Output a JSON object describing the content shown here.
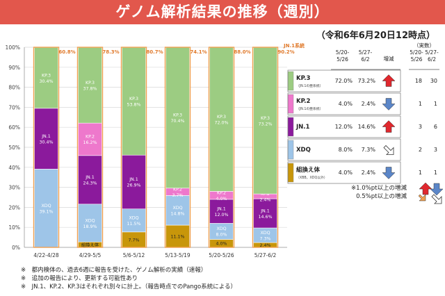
{
  "title": "ゲノム解析結果の推移（週別）",
  "as_of": "（令和6年6月20日12時点）",
  "chart_data": {
    "type": "bar",
    "stacked": true,
    "ylim": [
      0,
      100
    ],
    "y_ticks": [
      "0%",
      "10%",
      "20%",
      "30%",
      "40%",
      "50%",
      "60%",
      "70%",
      "80%",
      "90%",
      "100%"
    ],
    "categories": [
      "4/22-4/28",
      "4/29-5/5",
      "5/6-5/12",
      "5/13-5/19",
      "5/20-5/26",
      "5/27-6/2"
    ],
    "series": [
      {
        "name": "組換え体",
        "color": "#c8960a",
        "values": [
          0,
          2.7,
          7.7,
          11.1,
          4.0,
          2.4
        ],
        "labels": [
          "",
          "組換え体",
          "7.7%",
          "11.1%",
          "4.0%",
          "2.4%"
        ]
      },
      {
        "name": "XDQ",
        "color": "#9ec5e8",
        "values": [
          39.1,
          18.9,
          11.5,
          14.8,
          8.0,
          7.3
        ],
        "labels": [
          "XDQ\n39.1%",
          "XDQ\n18.9%",
          "XDQ\n11.5%",
          "XDQ\n14.8%",
          "XDQ\n8.0%",
          "XDQ\n7.3%"
        ]
      },
      {
        "name": "JN.1",
        "color": "#8b1a9c",
        "values": [
          30.4,
          24.3,
          26.9,
          0,
          12.0,
          14.6
        ],
        "labels": [
          "JN.1\n30.4%",
          "JN.1\n24.3%",
          "JN.1\n26.9%",
          "",
          "JN.1\n12.0%",
          "JN.1\n14.6%"
        ]
      },
      {
        "name": "KP.2",
        "color": "#ee78cc",
        "values": [
          0,
          16.2,
          0,
          3.7,
          4.0,
          2.4
        ],
        "labels": [
          "",
          "KP.2\n16.2%",
          "",
          "KP.2\n3.7%",
          "KP.2\n4.0%",
          "KP.2\n2.4%"
        ]
      },
      {
        "name": "KP.3",
        "color": "#9ccc82",
        "values": [
          30.4,
          37.8,
          53.8,
          70.4,
          72.0,
          73.2
        ],
        "labels": [
          "KP.3\n30.4%",
          "KP.3\n37.8%",
          "KP.3\n53.8%",
          "KP.3\n70.4%",
          "KP.3\n72.0%",
          "KP.3\n73.2%"
        ]
      }
    ],
    "jn1_lineage_label": "JN.1系統",
    "jn1_lineage_pct": [
      "60.8%",
      "78.3%",
      "80.7%",
      "74.1%",
      "88.0%",
      "90.2%"
    ],
    "jn1_lineage_values": [
      60.8,
      78.3,
      80.7,
      74.1,
      88.0,
      90.2
    ]
  },
  "table": {
    "header_pct": [
      "5/20-\n5/26",
      "5/27-\n6/2"
    ],
    "header_change": "増減",
    "header_counts_title": "（実数）",
    "header_counts": [
      "5/20-\n5/26",
      "5/27-\n6/2"
    ],
    "rows": [
      {
        "name": "KP.3",
        "sub": "（JN.1の亜系統）",
        "color": "#9ccc82",
        "p1": "72.0%",
        "p2": "73.2%",
        "change": "up-big",
        "c1": "18",
        "c2": "30"
      },
      {
        "name": "KP.2",
        "sub": "（JN.1の亜系統）",
        "color": "#ee78cc",
        "p1": "4.0%",
        "p2": "2.4%",
        "change": "down-big",
        "c1": "1",
        "c2": "1"
      },
      {
        "name": "JN.1",
        "sub": "",
        "color": "#8b1a9c",
        "p1": "12.0%",
        "p2": "14.6%",
        "change": "up-big",
        "c1": "3",
        "c2": "6"
      },
      {
        "name": "XDQ",
        "sub": "",
        "color": "#9ec5e8",
        "p1": "8.0%",
        "p2": "7.3%",
        "change": "down-small",
        "c1": "2",
        "c2": "3"
      },
      {
        "name": "組換え体",
        "sub": "（XBB，XDQ以外）",
        "color": "#c8960a",
        "p1": "4.0%",
        "p2": "2.4%",
        "change": "down-big",
        "c1": "1",
        "c2": "1"
      }
    ],
    "legend_big": "※1.0%pt以上の増減",
    "legend_small": "0.5%pt以上の増減"
  },
  "notes": [
    "※　都内検体の、過去6週に報告を受けた、ゲノム解析の実績（速報）",
    "※　追加の報告により、更新する可能性あり",
    "※　JN.1、KP.2、KP.3はそれぞれ別々に計上。（報告時点でのPango系統による）"
  ]
}
